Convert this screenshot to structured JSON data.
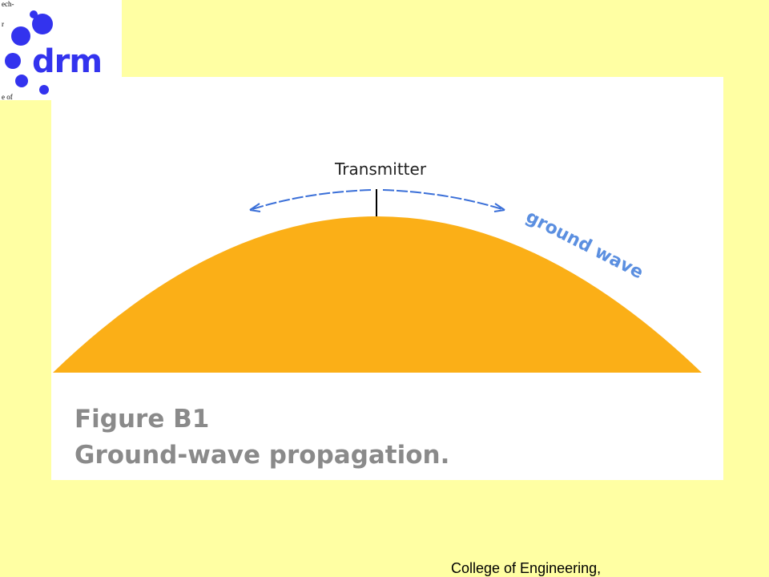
{
  "logo": {
    "text": "DRM",
    "fragments": [
      "ech-",
      "r",
      "e of"
    ]
  },
  "figure": {
    "transmitter": "Transmitter",
    "wave_label": "ground wave",
    "caption_title": "Figure B1",
    "caption_text": "Ground-wave propagation."
  },
  "footer": {
    "text": "College of Engineering,"
  }
}
